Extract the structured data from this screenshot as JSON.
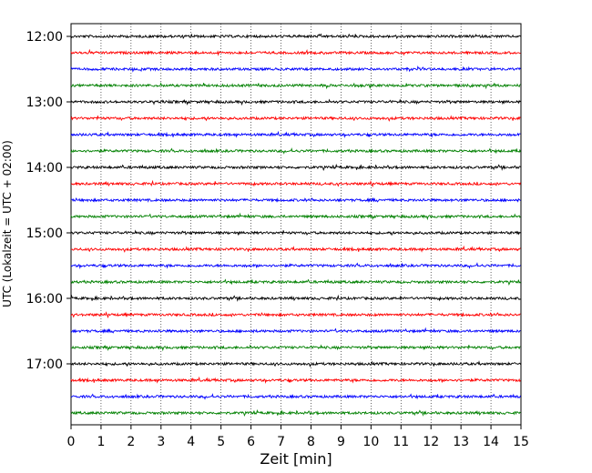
{
  "chart_data": {
    "type": "line",
    "subtype": "helicorder",
    "xlabel": "Zeit  [min]",
    "ylabel": "UTC (Lokalzeit = UTC + 02:00)",
    "xlim": [
      0,
      15
    ],
    "x_ticks": [
      0,
      1,
      2,
      3,
      4,
      5,
      6,
      7,
      8,
      9,
      10,
      11,
      12,
      13,
      14,
      15
    ],
    "y_tick_labels": [
      "12:00",
      "13:00",
      "14:00",
      "15:00",
      "16:00",
      "17:00"
    ],
    "grid": "vertical dotted lines at every minute",
    "trace_interval_minutes": 15,
    "trace_start_times": [
      "12:00",
      "12:15",
      "12:30",
      "12:45",
      "13:00",
      "13:15",
      "13:30",
      "13:45",
      "14:00",
      "14:15",
      "14:30",
      "14:45",
      "15:00",
      "15:15",
      "15:30",
      "15:45",
      "16:00",
      "16:15",
      "16:30",
      "16:45",
      "17:00",
      "17:15",
      "17:30",
      "17:45"
    ],
    "trace_color_cycle": [
      "#000000",
      "#ff0000",
      "#0000ff",
      "#008000"
    ]
  }
}
